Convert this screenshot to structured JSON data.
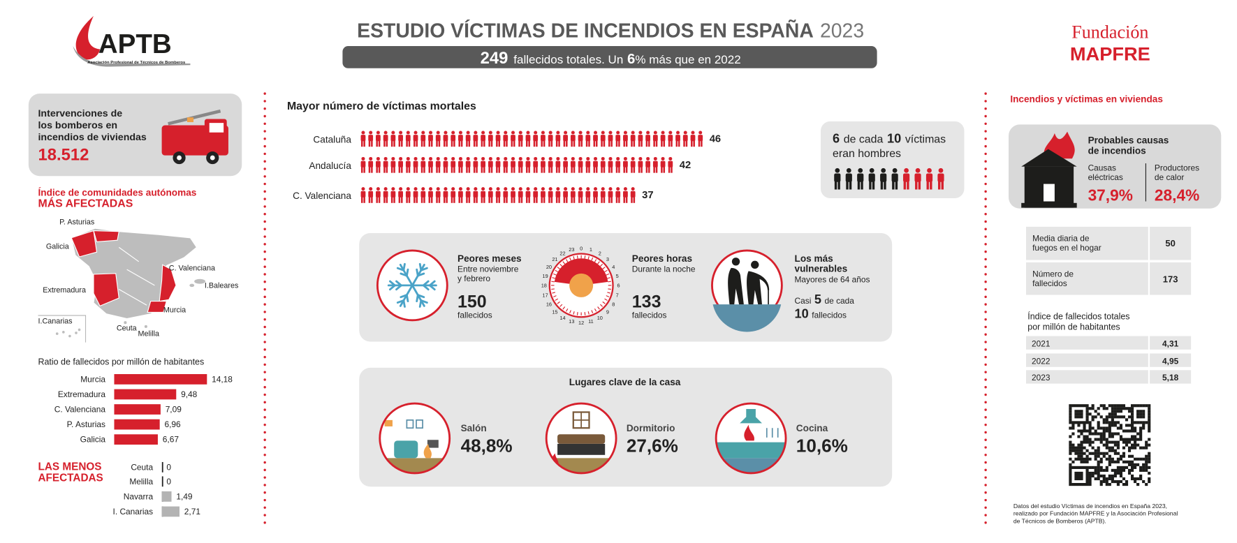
{
  "header": {
    "logo": "APTB",
    "logo_caption": "Asociación Profesional de Técnicos de Bomberos",
    "title": "ESTUDIO VÍCTIMAS DE INCENDIOS EN ESPAÑA",
    "year": "2023",
    "summary": {
      "total": "249",
      "text_a": "fallecidos totales. Un",
      "increase": "6",
      "text_b": "% más que en 2022"
    },
    "sponsor_line1": "Fundación",
    "sponsor_line2": "MAPFRE"
  },
  "interventions": {
    "label": [
      "Intervenciones de",
      "los bomberos en",
      "incendios de viviendas"
    ],
    "value": "18.512"
  },
  "map": {
    "title": "Índice de comunidades autónomas",
    "subtitle": "MÁS AFECTADAS",
    "labels": [
      "P. Asturias",
      "Galicia",
      "C. Valenciana",
      "I.Baleares",
      "Extremadura",
      "Murcia",
      "I.Canarias",
      "Ceuta",
      "Melilla"
    ]
  },
  "ratio": {
    "title": "Ratio de fallecidos por millón de habitantes",
    "categories": [
      "Murcia",
      "Extremadura",
      "C. Valenciana",
      "P. Asturias",
      "Galicia"
    ],
    "values": [
      14.18,
      9.48,
      7.09,
      6.96,
      6.67
    ],
    "value_labels": [
      "14,18",
      "9,48",
      "7,09",
      "6,96",
      "6,67"
    ]
  },
  "least": {
    "title": [
      "LAS MENOS",
      "AFECTADAS"
    ],
    "categories": [
      "Ceuta",
      "Melilla",
      "Navarra",
      "I. Canarias"
    ],
    "values": [
      0,
      0,
      1.49,
      2.71
    ],
    "value_labels": [
      "0",
      "0",
      "1,49",
      "2,71"
    ]
  },
  "victims": {
    "title": "Mayor número de víctimas mortales",
    "categories": [
      "Cataluña",
      "Andalucía",
      "C. Valenciana"
    ],
    "values": [
      46,
      42,
      37
    ]
  },
  "gender": {
    "men": 6,
    "text_a": "de cada",
    "total": 10,
    "text_b": "víctimas",
    "text_c": "eran hombres"
  },
  "months": {
    "title": "Peores meses",
    "detail": [
      "Entre noviembre",
      "y febrero"
    ],
    "value": 150,
    "unit": "fallecidos"
  },
  "hours": {
    "title": "Peores horas",
    "detail": "Durante la noche",
    "value": 133,
    "unit": "fallecidos",
    "dial": [
      0,
      1,
      2,
      3,
      4,
      5,
      6,
      7,
      8,
      9,
      10,
      11,
      12,
      13,
      14,
      15,
      16,
      17,
      18,
      19,
      20,
      21,
      22,
      23
    ]
  },
  "vulnerable": {
    "title": [
      "Los más",
      "vulnerables"
    ],
    "detail": "Mayores de 64 años",
    "text_a": "Casi",
    "count": 5,
    "text_b": "de cada",
    "of": 10,
    "unit": "fallecidos"
  },
  "places": {
    "title": "Lugares clave de la casa",
    "items": [
      {
        "name": "Salón",
        "value": "48,8%"
      },
      {
        "name": "Dormitorio",
        "value": "27,6%"
      },
      {
        "name": "Cocina",
        "value": "10,6%"
      }
    ]
  },
  "homes": {
    "title": "Incendios y víctimas en viviendas",
    "causes_title": [
      "Probables causas",
      "de incendios"
    ],
    "causes": [
      {
        "name": [
          "Causas",
          "eléctricas"
        ],
        "value": "37,9%"
      },
      {
        "name": [
          "Productores",
          "de calor"
        ],
        "value": "28,4%"
      }
    ],
    "table": [
      {
        "label": [
          "Media diaria de",
          "fuegos en el hogar"
        ],
        "value": 50
      },
      {
        "label": [
          "Número de",
          "fallecidos"
        ],
        "value": 173
      }
    ],
    "index_title": [
      "Índice de fallecidos totales",
      "por millón de habitantes"
    ],
    "index": [
      {
        "year": "2021",
        "value": "4,31"
      },
      {
        "year": "2022",
        "value": "4,95"
      },
      {
        "year": "2023",
        "value": "5,18"
      }
    ]
  },
  "footer": [
    "Datos del estudio Víctimas de incendios en España 2023,",
    "realizado por Fundación MAPFRE y la Asociación Profesional",
    "de Técnicos de Bomberos (APTB)."
  ]
}
